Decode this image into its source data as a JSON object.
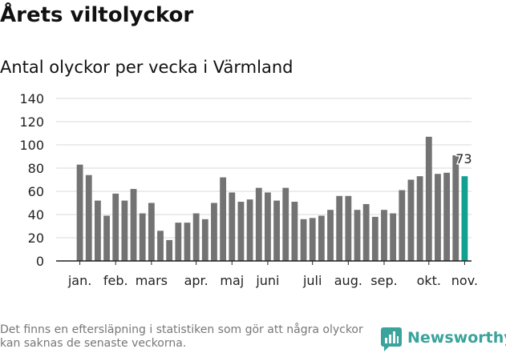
{
  "header": {
    "title": "Årets viltolyckor",
    "subtitle": "Antal olyckor per vecka i Värmland"
  },
  "footer": {
    "note": "Det finns en eftersläpning i statistiken som gör att några olyckor kan saknas de senaste veckorna.",
    "brand": "Newsworthy"
  },
  "colors": {
    "bar": "#737373",
    "highlight": "#12a090",
    "grid": "#d9d9d9",
    "axis": "#222222",
    "text": "#222222",
    "brand": "#3aa39b"
  },
  "chart_data": {
    "type": "bar",
    "title": "Antal olyckor per vecka i Värmland",
    "xlabel": "",
    "ylabel": "",
    "ylim": [
      0,
      140
    ],
    "yticks": [
      0,
      20,
      40,
      60,
      80,
      100,
      120,
      140
    ],
    "grid": true,
    "x_axis": "weeks of the year",
    "month_ticks": [
      {
        "label": "jan.",
        "week": 1
      },
      {
        "label": "feb.",
        "week": 5
      },
      {
        "label": "mars",
        "week": 9
      },
      {
        "label": "apr.",
        "week": 14
      },
      {
        "label": "maj",
        "week": 18
      },
      {
        "label": "juni",
        "week": 22
      },
      {
        "label": "juli",
        "week": 27
      },
      {
        "label": "aug.",
        "week": 31
      },
      {
        "label": "sep.",
        "week": 35
      },
      {
        "label": "okt.",
        "week": 40
      },
      {
        "label": "nov.",
        "week": 44
      }
    ],
    "weeks": [
      1,
      2,
      3,
      4,
      5,
      6,
      7,
      8,
      9,
      10,
      11,
      12,
      13,
      14,
      15,
      16,
      17,
      18,
      19,
      20,
      21,
      22,
      23,
      24,
      25,
      26,
      27,
      28,
      29,
      30,
      31,
      32,
      33,
      34,
      35,
      36,
      37,
      38,
      39,
      40,
      41,
      42,
      43,
      44
    ],
    "values": [
      83,
      74,
      52,
      39,
      58,
      52,
      62,
      41,
      50,
      26,
      18,
      33,
      33,
      41,
      36,
      50,
      72,
      59,
      51,
      53,
      63,
      59,
      52,
      63,
      51,
      36,
      37,
      39,
      44,
      56,
      56,
      44,
      49,
      38,
      44,
      41,
      61,
      70,
      73,
      107,
      75,
      76,
      91,
      73
    ],
    "highlight": {
      "week": 44,
      "value": 73,
      "label": "73"
    }
  }
}
